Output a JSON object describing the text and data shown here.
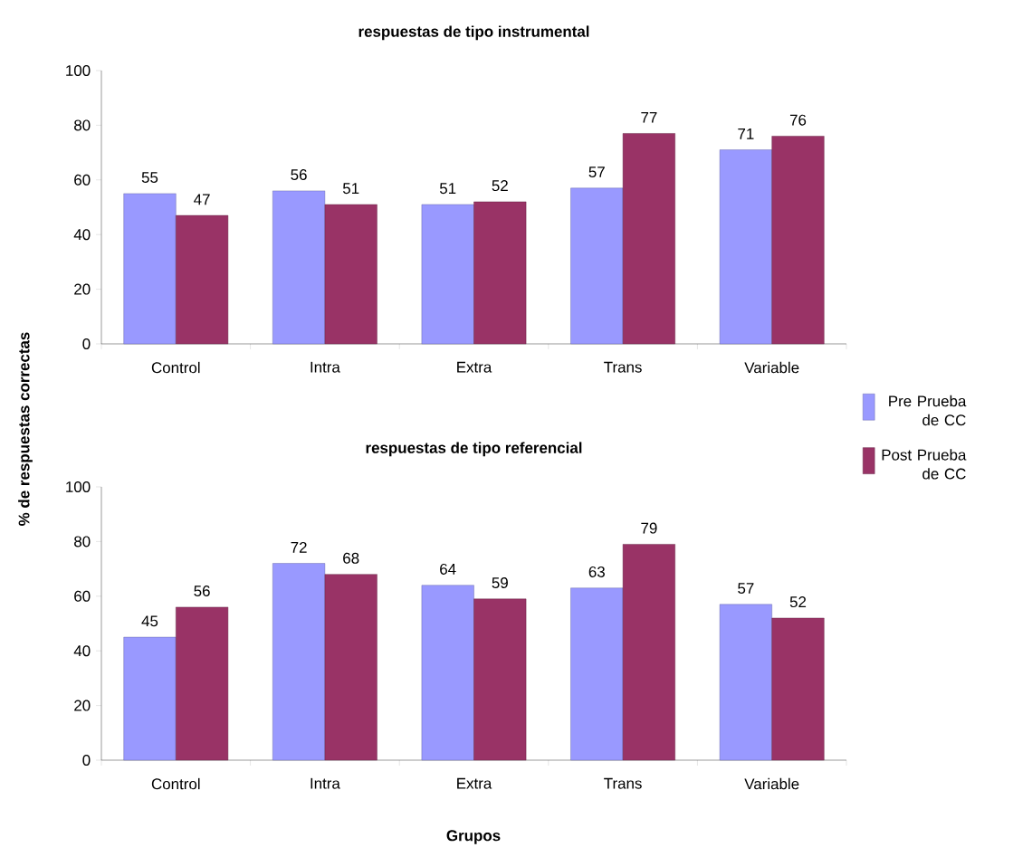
{
  "chart_data": [
    {
      "type": "bar",
      "title": "respuestas de tipo instrumental",
      "ylabel": "% de respuestas correctas",
      "categories": [
        "Control",
        "Intra",
        "Extra",
        "Trans",
        "Variable"
      ],
      "series": [
        {
          "name": "Pre Prueba de CC",
          "color": "#9999ff",
          "values": [
            55,
            56,
            51,
            57,
            71
          ]
        },
        {
          "name": "Post Prueba de CC",
          "color": "#993366",
          "values": [
            47,
            51,
            52,
            77,
            76
          ]
        }
      ],
      "ylim": [
        0,
        100
      ],
      "yticks": [
        0,
        20,
        40,
        60,
        80,
        100
      ],
      "data_labels": true,
      "legend": "right"
    },
    {
      "type": "bar",
      "title": "respuestas de tipo referencial",
      "xlabel": "Grupos",
      "categories": [
        "Control",
        "Intra",
        "Extra",
        "Trans",
        "Variable"
      ],
      "series": [
        {
          "color": "#9999ff",
          "values": [
            45,
            72,
            64,
            63,
            57
          ]
        },
        {
          "color": "#993366",
          "values": [
            56,
            68,
            59,
            79,
            52
          ]
        }
      ],
      "ylim": [
        0,
        100
      ],
      "yticks": [
        0,
        20,
        40,
        60,
        80,
        100
      ],
      "data_labels": true
    }
  ]
}
